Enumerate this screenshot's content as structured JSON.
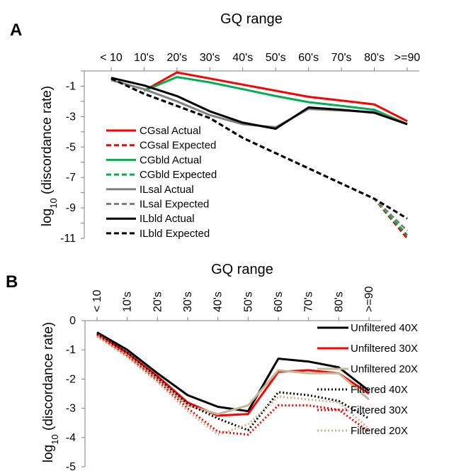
{
  "chart_data": [
    {
      "panel_label": "A",
      "type": "line",
      "title": "GQ range",
      "xlabel": "GQ range",
      "ylabel": "log10 (discordance rate)",
      "ylabel_main": "log",
      "ylabel_sub": "10",
      "ylabel_rest": " (discordance rate)",
      "categories": [
        "< 10",
        "10's",
        "20's",
        "30's",
        "40's",
        "50's",
        "60's",
        "70's",
        "80's",
        ">=90"
      ],
      "yticks": [
        "-1",
        "-3",
        "-5",
        "-7",
        "-9",
        "-11"
      ],
      "ylim": [
        -11,
        0
      ],
      "x_axis_position": "top",
      "legend_position": "left",
      "series": [
        {
          "name": "CGsal Actual",
          "color": "#ff0000",
          "dash": "solid",
          "values": [
            null,
            -1.3,
            -0.1,
            -0.5,
            -0.9,
            -1.3,
            -1.7,
            -1.95,
            -2.2,
            -3.3
          ]
        },
        {
          "name": "CGsal Expected",
          "color": "#ff0000",
          "dash": "dashed",
          "values": [
            -0.5,
            -1.5,
            -2.3,
            -3.1,
            -4.4,
            -5.4,
            -6.4,
            -7.4,
            -8.4,
            -11
          ]
        },
        {
          "name": "CGbld Actual",
          "color": "#00b050",
          "dash": "solid",
          "values": [
            null,
            -1.3,
            -0.4,
            -0.75,
            -1.2,
            -1.65,
            -2.05,
            -2.3,
            -2.55,
            -3.5
          ]
        },
        {
          "name": "CGbld Expected",
          "color": "#00b050",
          "dash": "dashed",
          "values": [
            -0.5,
            -1.5,
            -2.3,
            -3.1,
            -4.4,
            -5.4,
            -6.4,
            -7.4,
            -8.4,
            -10.8
          ]
        },
        {
          "name": "ILsal Actual",
          "color": "#808080",
          "dash": "solid",
          "values": [
            -0.6,
            -1.2,
            -2.0,
            -2.9,
            -3.5,
            -3.7,
            -2.5,
            -2.6,
            -2.7,
            -3.5
          ]
        },
        {
          "name": "ILsal Expected",
          "color": "#808080",
          "dash": "dashed",
          "values": [
            -0.5,
            -1.5,
            -2.3,
            -3.1,
            -4.4,
            -5.4,
            -6.4,
            -7.4,
            -8.4,
            -10.5
          ]
        },
        {
          "name": "ILbld Actual",
          "color": "#000000",
          "dash": "solid",
          "values": [
            -0.45,
            -0.95,
            -1.65,
            -2.65,
            -3.4,
            -3.8,
            -2.4,
            -2.55,
            -2.75,
            -3.5
          ]
        },
        {
          "name": "ILbld Expected",
          "color": "#000000",
          "dash": "dashed",
          "values": [
            -0.5,
            -1.5,
            -2.3,
            -3.1,
            -4.4,
            -5.4,
            -6.4,
            -7.4,
            -8.4,
            -9.7
          ]
        }
      ]
    },
    {
      "panel_label": "B",
      "type": "line",
      "title": "GQ range",
      "xlabel": "GQ range",
      "ylabel": "log10 (discordance rate)",
      "ylabel_main": "log",
      "ylabel_sub": "10",
      "ylabel_rest": " (discordance rate)",
      "categories": [
        "< 10",
        "10's",
        "20's",
        "30's",
        "40's",
        "50's",
        "60's",
        "70's",
        "80's",
        ">=90"
      ],
      "yticks": [
        "0",
        "-1",
        "-2",
        "-3",
        "-4",
        "-5"
      ],
      "ylim": [
        -5,
        0
      ],
      "x_axis_position": "top",
      "legend_position": "right",
      "series": [
        {
          "name": "Unfiltered 40X",
          "color": "#000000",
          "dash": "solid",
          "values": [
            -0.4,
            -1.0,
            -1.8,
            -2.55,
            -2.95,
            -3.1,
            -1.3,
            -1.4,
            -1.6,
            -2.4
          ]
        },
        {
          "name": "Unfiltered 30X",
          "color": "#ff0000",
          "dash": "solid",
          "values": [
            -0.45,
            -1.1,
            -1.9,
            -2.8,
            -3.25,
            -3.2,
            -1.75,
            -1.7,
            -1.8,
            -2.5
          ]
        },
        {
          "name": "Unfiltered 20X",
          "color": "#c4b896",
          "dash": "solid",
          "values": [
            -0.5,
            -1.2,
            -2.0,
            -2.9,
            -3.2,
            -2.9,
            -1.7,
            -1.8,
            -1.8,
            -2.7
          ]
        },
        {
          "name": "Filtered 40X",
          "color": "#000000",
          "dash": "dotted",
          "values": [
            -0.45,
            -1.1,
            -1.95,
            -2.85,
            -3.35,
            -3.75,
            -2.45,
            -2.55,
            -2.75,
            -3.35
          ]
        },
        {
          "name": "Filtered 30X",
          "color": "#ff0000",
          "dash": "dotted",
          "values": [
            -0.5,
            -1.2,
            -2.05,
            -3.0,
            -3.8,
            -3.9,
            -2.9,
            -2.9,
            -3.05,
            -3.8
          ]
        },
        {
          "name": "Filtered 20X",
          "color": "#c4b896",
          "dash": "dotted",
          "values": [
            -0.55,
            -1.25,
            -2.1,
            -3.1,
            -3.9,
            -3.55,
            -2.6,
            -2.7,
            -2.8,
            -3.7
          ]
        }
      ]
    }
  ]
}
